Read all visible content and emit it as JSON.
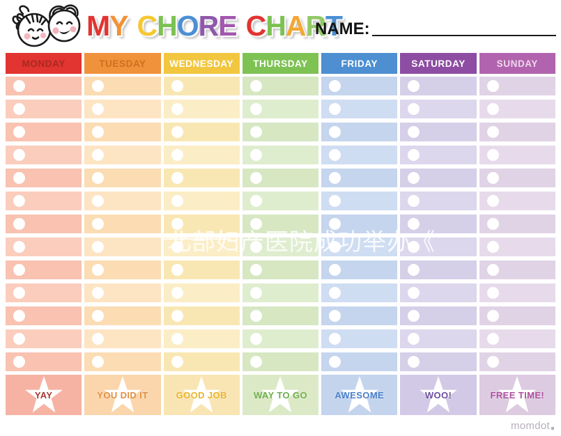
{
  "header": {
    "title_text": "MY CHORE CHART",
    "title_letters": [
      {
        "c": "M",
        "color": "#e23430"
      },
      {
        "c": "Y",
        "color": "#f29136"
      },
      {
        "c": " "
      },
      {
        "c": "C",
        "color": "#f5c832"
      },
      {
        "c": "H",
        "color": "#7cc253"
      },
      {
        "c": "O",
        "color": "#4b8fd4"
      },
      {
        "c": "R",
        "color": "#8f58ab"
      },
      {
        "c": "E",
        "color": "#a257ae"
      },
      {
        "c": " "
      },
      {
        "c": "C",
        "color": "#e23430"
      },
      {
        "c": "H",
        "color": "#7cc253"
      },
      {
        "c": "A",
        "color": "#f2a835"
      },
      {
        "c": "R",
        "color": "#93c967"
      },
      {
        "c": "T",
        "color": "#4b8fd4"
      }
    ],
    "name_label": "NAME:"
  },
  "grid": {
    "rows_per_column": 13
  },
  "columns": [
    {
      "id": "monday",
      "day": "MONDAY",
      "header_bg": "#e23430",
      "header_text": "#a82a20",
      "row_color_a": "#f9c2b1",
      "row_color_b": "#fbcdbd",
      "footer_bg": "#f6b3a3",
      "footer_label": "YAY",
      "footer_text": "#a93a31"
    },
    {
      "id": "tuesday",
      "day": "TUESDAY",
      "header_bg": "#f0923b",
      "header_text": "#cc6f20",
      "row_color_a": "#fcdcb3",
      "row_color_b": "#fde4c3",
      "footer_bg": "#fbd5ab",
      "footer_label": "YOU DID IT",
      "footer_text": "#df8f41"
    },
    {
      "id": "wednesday",
      "day": "WEDNESDAY",
      "header_bg": "#f2c73f",
      "header_text": "#ffffff",
      "row_color_a": "#f9e7b3",
      "row_color_b": "#fbedc5",
      "footer_bg": "#f9e5b4",
      "footer_label": "GOOD JOB",
      "footer_text": "#e9b42c"
    },
    {
      "id": "thursday",
      "day": "THURSDAY",
      "header_bg": "#7ec254",
      "header_text": "#ffffff",
      "row_color_a": "#d6e7c2",
      "row_color_b": "#dfedcf",
      "footer_bg": "#dce9c6",
      "footer_label": "WAY TO GO",
      "footer_text": "#6eae4c"
    },
    {
      "id": "friday",
      "day": "FRIDAY",
      "header_bg": "#4d8fd1",
      "header_text": "#ffffff",
      "row_color_a": "#c5d5ee",
      "row_color_b": "#cfddf2",
      "footer_bg": "#c5d4ed",
      "footer_label": "AWESOME",
      "footer_text": "#4a80ca"
    },
    {
      "id": "saturday",
      "day": "SATURDAY",
      "header_bg": "#8d4da2",
      "header_text": "#ffffff",
      "row_color_a": "#d5cfe8",
      "row_color_b": "#dcd7ec",
      "footer_bg": "#d2c9e6",
      "footer_label": "WOO!",
      "footer_text": "#6d4f9e"
    },
    {
      "id": "sunday",
      "day": "SUNDAY",
      "header_bg": "#b164ad",
      "header_text": "#eed6ec",
      "row_color_a": "#e1d3e6",
      "row_color_b": "#e7dbeb",
      "footer_bg": "#ddcbe1",
      "footer_label": "FREE TIME!",
      "footer_text": "#ae4f9d"
    }
  ],
  "watermark": {
    "text": "北部妇产医院成功举办《"
  },
  "branding": {
    "logo": "momdot"
  }
}
